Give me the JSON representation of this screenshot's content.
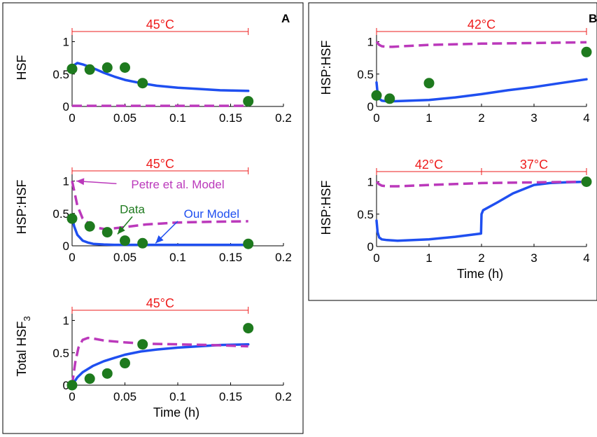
{
  "colors": {
    "our_model": "#1f4ff0",
    "petre_model": "#bb39bb",
    "data": "#1e7a1e",
    "temperature": "#ee1c1c",
    "frame": "#000000"
  },
  "panel_labels": {
    "A": "A",
    "B": "B"
  },
  "chart_data": [
    {
      "id": "A1",
      "type": "line",
      "panel": "A",
      "ylabel": "HSF",
      "xlabel": "",
      "xlim": [
        0,
        0.2
      ],
      "ylim": [
        0,
        1.2
      ],
      "xticks": [
        "0",
        "0.05",
        "0.1",
        "0.15",
        "0.2"
      ],
      "xtick_values": [
        0,
        0.05,
        0.1,
        0.15,
        0.2
      ],
      "yticks": [
        "0",
        "0.5",
        "1"
      ],
      "ytick_values": [
        0,
        0.5,
        1
      ],
      "temperature_bars": [
        {
          "label": "45°C",
          "start": 0,
          "end": 0.1667
        }
      ],
      "series": [
        {
          "role": "our_model",
          "style": "solid",
          "x": [
            0,
            0.002,
            0.005,
            0.01,
            0.02,
            0.03,
            0.04,
            0.05,
            0.065,
            0.08,
            0.1,
            0.12,
            0.14,
            0.1667
          ],
          "y": [
            0.6,
            0.64,
            0.67,
            0.65,
            0.59,
            0.52,
            0.46,
            0.41,
            0.36,
            0.32,
            0.29,
            0.27,
            0.25,
            0.24
          ]
        },
        {
          "role": "petre_model",
          "style": "dashed",
          "x": [
            0,
            0.1667
          ],
          "y": [
            0.01,
            0.01
          ]
        },
        {
          "role": "data",
          "style": "markers",
          "x": [
            0,
            0.0167,
            0.0333,
            0.05,
            0.0667,
            0.1667
          ],
          "y": [
            0.58,
            0.57,
            0.6,
            0.6,
            0.36,
            0.08
          ]
        }
      ]
    },
    {
      "id": "A2",
      "type": "line",
      "panel": "A",
      "ylabel": "HSP:HSF",
      "xlabel": "",
      "xlim": [
        0,
        0.2
      ],
      "ylim": [
        0,
        1.2
      ],
      "xticks": [
        "0",
        "0.05",
        "0.1",
        "0.15",
        "0.2"
      ],
      "xtick_values": [
        0,
        0.05,
        0.1,
        0.15,
        0.2
      ],
      "yticks": [
        "0",
        "0.5",
        "1"
      ],
      "ytick_values": [
        0,
        0.5,
        1
      ],
      "temperature_bars": [
        {
          "label": "45°C",
          "start": 0,
          "end": 0.1667
        }
      ],
      "annotations": [
        {
          "text": "Petre et al. Model",
          "role": "petre_model",
          "x": 0.1,
          "y": 0.95,
          "arrow_from": [
            0.042,
            0.96
          ],
          "arrow_to": [
            0.004,
            1.0
          ]
        },
        {
          "text": "Data",
          "role": "data",
          "x": 0.057,
          "y": 0.57,
          "arrow_from": [
            0.057,
            0.45
          ],
          "arrow_to": [
            0.043,
            0.18
          ]
        },
        {
          "text": "Our Model",
          "role": "our_model",
          "x": 0.132,
          "y": 0.5,
          "arrow_from": [
            0.1,
            0.38
          ],
          "arrow_to": [
            0.079,
            0.04
          ]
        }
      ],
      "series": [
        {
          "role": "our_model",
          "style": "solid",
          "x": [
            0,
            0.002,
            0.005,
            0.01,
            0.015,
            0.02,
            0.03,
            0.04,
            0.05,
            0.07,
            0.1,
            0.1667
          ],
          "y": [
            0.44,
            0.3,
            0.17,
            0.08,
            0.05,
            0.03,
            0.02,
            0.015,
            0.015,
            0.015,
            0.015,
            0.015
          ]
        },
        {
          "role": "petre_model",
          "style": "dashed",
          "x": [
            0,
            0.002,
            0.005,
            0.01,
            0.02,
            0.03,
            0.04,
            0.05,
            0.07,
            0.1,
            0.13,
            0.1667
          ],
          "y": [
            1.0,
            0.85,
            0.62,
            0.42,
            0.29,
            0.26,
            0.27,
            0.29,
            0.33,
            0.36,
            0.37,
            0.38
          ]
        },
        {
          "role": "data",
          "style": "markers",
          "x": [
            0,
            0.0167,
            0.0333,
            0.05,
            0.0667,
            0.1667
          ],
          "y": [
            0.42,
            0.3,
            0.21,
            0.08,
            0.04,
            0.03
          ]
        }
      ]
    },
    {
      "id": "A3",
      "type": "line",
      "panel": "A",
      "ylabel": "Total HSF",
      "ylabel_sub": "3",
      "xlabel": "Time (h)",
      "xlim": [
        0,
        0.2
      ],
      "ylim": [
        0,
        1.2
      ],
      "xticks": [
        "0",
        "0.05",
        "0.1",
        "0.15",
        "0.2"
      ],
      "xtick_values": [
        0,
        0.05,
        0.1,
        0.15,
        0.2
      ],
      "yticks": [
        "0",
        "0.5",
        "1"
      ],
      "ytick_values": [
        0,
        0.5,
        1
      ],
      "temperature_bars": [
        {
          "label": "45°C",
          "start": 0,
          "end": 0.1667
        }
      ],
      "series": [
        {
          "role": "our_model",
          "style": "solid",
          "x": [
            0,
            0.005,
            0.01,
            0.02,
            0.03,
            0.04,
            0.05,
            0.065,
            0.08,
            0.1,
            0.12,
            0.14,
            0.1667
          ],
          "y": [
            0.0,
            0.12,
            0.2,
            0.3,
            0.37,
            0.42,
            0.47,
            0.52,
            0.55,
            0.58,
            0.6,
            0.62,
            0.63
          ]
        },
        {
          "role": "petre_model",
          "style": "dashed",
          "x": [
            0,
            0.003,
            0.006,
            0.01,
            0.015,
            0.02,
            0.03,
            0.05,
            0.07,
            0.1,
            0.13,
            0.1667
          ],
          "y": [
            0.0,
            0.35,
            0.58,
            0.7,
            0.73,
            0.72,
            0.69,
            0.66,
            0.64,
            0.63,
            0.62,
            0.6
          ]
        },
        {
          "role": "data",
          "style": "markers",
          "x": [
            0,
            0.0167,
            0.0333,
            0.05,
            0.0667,
            0.1667
          ],
          "y": [
            0.0,
            0.1,
            0.18,
            0.34,
            0.63,
            0.88
          ]
        }
      ]
    },
    {
      "id": "B1",
      "type": "line",
      "panel": "B",
      "ylabel": "HSP:HSF",
      "xlabel": "",
      "xlim": [
        0,
        4
      ],
      "ylim": [
        0,
        1.2
      ],
      "xticks": [
        "0",
        "1",
        "2",
        "3",
        "4"
      ],
      "xtick_values": [
        0,
        1,
        2,
        3,
        4
      ],
      "yticks": [
        "0",
        "0.5",
        "1"
      ],
      "ytick_values": [
        0,
        0.5,
        1
      ],
      "temperature_bars": [
        {
          "label": "42°C",
          "start": 0,
          "end": 4
        }
      ],
      "series": [
        {
          "role": "our_model",
          "style": "solid",
          "x": [
            0,
            0.02,
            0.05,
            0.1,
            0.2,
            0.3,
            0.5,
            1,
            1.5,
            2,
            2.5,
            3,
            3.5,
            4
          ],
          "y": [
            0.37,
            0.2,
            0.12,
            0.09,
            0.08,
            0.08,
            0.085,
            0.1,
            0.14,
            0.19,
            0.25,
            0.3,
            0.36,
            0.42
          ]
        },
        {
          "role": "petre_model",
          "style": "dashed",
          "x": [
            0,
            0.05,
            0.1,
            0.2,
            0.3,
            0.5,
            1,
            2,
            3,
            4
          ],
          "y": [
            1.0,
            0.95,
            0.93,
            0.92,
            0.92,
            0.93,
            0.95,
            0.97,
            0.98,
            0.99
          ]
        },
        {
          "role": "data",
          "style": "markers",
          "x": [
            0,
            0.25,
            1,
            4
          ],
          "y": [
            0.17,
            0.12,
            0.36,
            0.84
          ]
        }
      ]
    },
    {
      "id": "B2",
      "type": "line",
      "panel": "B",
      "ylabel": "HSP:HSF",
      "xlabel": "Time (h)",
      "xlim": [
        0,
        4
      ],
      "ylim": [
        0,
        1.2
      ],
      "xticks": [
        "0",
        "1",
        "2",
        "3",
        "4"
      ],
      "xtick_values": [
        0,
        1,
        2,
        3,
        4
      ],
      "yticks": [
        "0",
        "0.5",
        "1"
      ],
      "ytick_values": [
        0,
        0.5,
        1
      ],
      "temperature_bars": [
        {
          "label": "42°C",
          "start": 0,
          "end": 2
        },
        {
          "label": "37°C",
          "start": 2,
          "end": 4
        }
      ],
      "series": [
        {
          "role": "our_model",
          "style": "solid",
          "x": [
            0,
            0.02,
            0.05,
            0.1,
            0.2,
            0.4,
            0.7,
            1,
            1.5,
            1.99,
            2.0,
            2.03,
            2.3,
            2.6,
            3.0,
            3.3,
            3.6,
            4.0
          ],
          "y": [
            0.4,
            0.22,
            0.14,
            0.11,
            0.1,
            0.09,
            0.1,
            0.11,
            0.15,
            0.2,
            0.5,
            0.56,
            0.68,
            0.82,
            0.95,
            0.98,
            0.99,
            1.0
          ]
        },
        {
          "role": "petre_model",
          "style": "dashed",
          "x": [
            0,
            0.05,
            0.1,
            0.2,
            0.4,
            1,
            2,
            3,
            4
          ],
          "y": [
            1.0,
            0.96,
            0.94,
            0.93,
            0.93,
            0.95,
            0.98,
            0.99,
            1.0
          ]
        },
        {
          "role": "data",
          "style": "markers",
          "x": [
            4
          ],
          "y": [
            1.0
          ]
        }
      ]
    }
  ]
}
